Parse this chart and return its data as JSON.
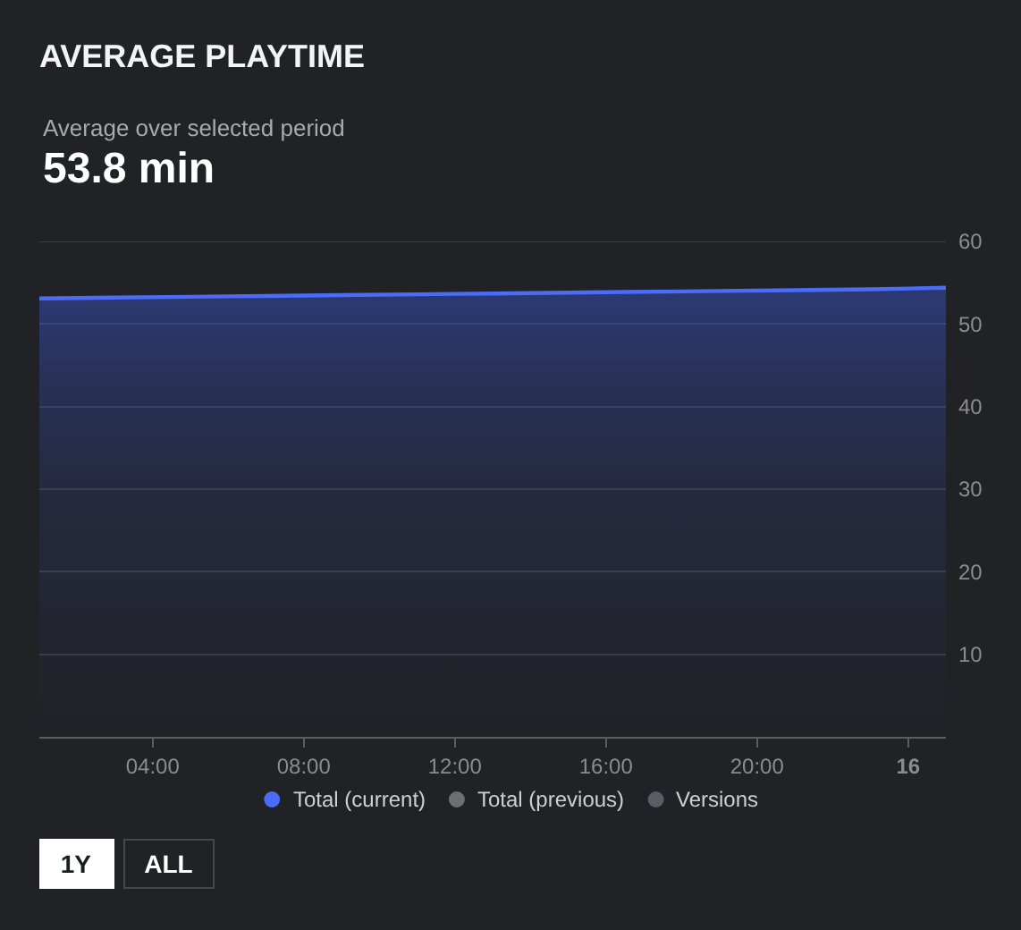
{
  "chart_data": {
    "type": "area",
    "title": "AVERAGE PLAYTIME",
    "subtitle": "Average over selected period",
    "annotations": [
      "53.8 min",
      "1Y",
      "ALL"
    ],
    "x": [
      "--01-15T01:00",
      "--01-15T03:00",
      "--01-15T05:00",
      "--01-15T07:00",
      "--01-15T09:00",
      "--01-15T11:00",
      "--01-15T13:00",
      "--01-15T15:00",
      "--01-15T17:00",
      "--01-15T19:00",
      "--01-15T21:00",
      "--01-15T23:00",
      "--01-16T01:00"
    ],
    "series": [
      {
        "name": "Total (current)",
        "color": "#4a6cf7",
        "values": [
          53.1,
          53.2,
          53.3,
          53.4,
          53.5,
          53.6,
          53.7,
          53.8,
          53.9,
          54.0,
          54.1,
          54.2,
          54.4
        ]
      },
      {
        "name": "Total (previous)",
        "color": "#6e6e72",
        "values": [
          null,
          null,
          null,
          null,
          null,
          null,
          null,
          null,
          null,
          null,
          null,
          null,
          null
        ]
      },
      {
        "name": "Versions",
        "color": "#5c5d63",
        "values": [
          null,
          null,
          null,
          null,
          null,
          null,
          null,
          null,
          null,
          null,
          null,
          null,
          null
        ]
      }
    ],
    "xlim": [
      "--01-15T01:00",
      "--01-16T01:00"
    ],
    "xticks": [
      {
        "value": "--01-15T04:00",
        "label": "04:00"
      },
      {
        "value": "--01-15T08:00",
        "label": "08:00"
      },
      {
        "value": "--01-15T12:00",
        "label": "12:00"
      },
      {
        "value": "--01-15T16:00",
        "label": "16:00"
      },
      {
        "value": "--01-15T20:00",
        "label": "20:00"
      },
      {
        "value": "--01-16",
        "label": "16"
      }
    ],
    "ylim": [
      0,
      60
    ],
    "yticks": [
      10,
      20,
      30,
      40,
      50,
      60
    ],
    "grid": "y",
    "legend": "bottom"
  }
}
